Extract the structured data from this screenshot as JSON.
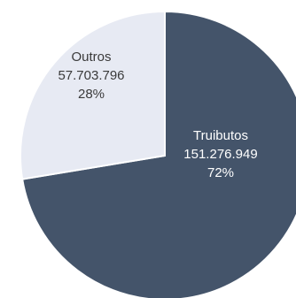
{
  "chart_data": {
    "type": "pie",
    "title": "",
    "slices": [
      {
        "label": "Truibutos",
        "value": 151276949,
        "value_text": "151.276.949",
        "percent_text": "72%",
        "color": "#44546a",
        "text_color": "#ffffff"
      },
      {
        "label": "Outros",
        "value": 57703796,
        "value_text": "57.703.796",
        "percent_text": "28%",
        "color": "#e7eaf3",
        "text_color": "#3a3a3a"
      }
    ],
    "start_angle_deg": 0,
    "direction": "clockwise",
    "separator_color": "#ffffff",
    "legend": "none",
    "grid": false
  }
}
